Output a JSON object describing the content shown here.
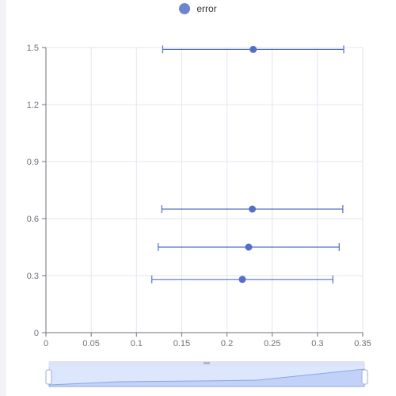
{
  "chart_data": {
    "type": "scatter",
    "legend": [
      {
        "name": "error",
        "color": "#5470c6"
      }
    ],
    "series": [
      {
        "name": "error",
        "points": [
          {
            "x": 0.217,
            "y": 0.28,
            "xmin": 0.117,
            "xmax": 0.317
          },
          {
            "x": 0.224,
            "y": 0.45,
            "xmin": 0.124,
            "xmax": 0.324
          },
          {
            "x": 0.228,
            "y": 0.65,
            "xmin": 0.128,
            "xmax": 0.328
          },
          {
            "x": 0.229,
            "y": 1.49,
            "xmin": 0.129,
            "xmax": 0.329
          }
        ]
      }
    ],
    "xlim": [
      0,
      0.35
    ],
    "ylim": [
      0,
      1.5
    ],
    "xticks": [
      "0",
      "0.05",
      "0.1",
      "0.15",
      "0.2",
      "0.25",
      "0.3",
      "0.35"
    ],
    "yticks": [
      "0",
      "0.3",
      "0.6",
      "0.9",
      "1.2",
      "1.5"
    ],
    "grid": true,
    "data_zoom": true,
    "colors": {
      "series": "#5470c6",
      "grid": "#e0e6f1",
      "axis": "#6e7079"
    }
  }
}
